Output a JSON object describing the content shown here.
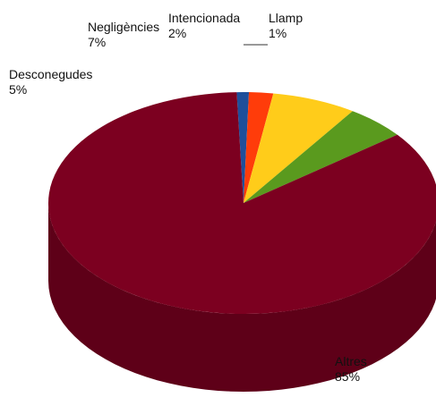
{
  "chart_data": {
    "type": "pie",
    "three_d": true,
    "title": "",
    "categories": [
      "Altres",
      "Desconegudes",
      "Negligències",
      "Intencionada",
      "Llamp"
    ],
    "values": [
      85,
      5,
      7,
      2,
      1
    ],
    "value_labels": [
      "85%",
      "5%",
      "7%",
      "2%",
      "1%"
    ],
    "colors": [
      "#7c0020",
      "#5a9a1e",
      "#ffcc1a",
      "#ff3c0a",
      "#1f4f9a"
    ],
    "side_colors": [
      "#5e0018",
      "#3f6f14",
      "#c9a014",
      "#c42c06",
      "#153a73"
    ],
    "legend": "none",
    "leader_line_for": "Llamp"
  }
}
